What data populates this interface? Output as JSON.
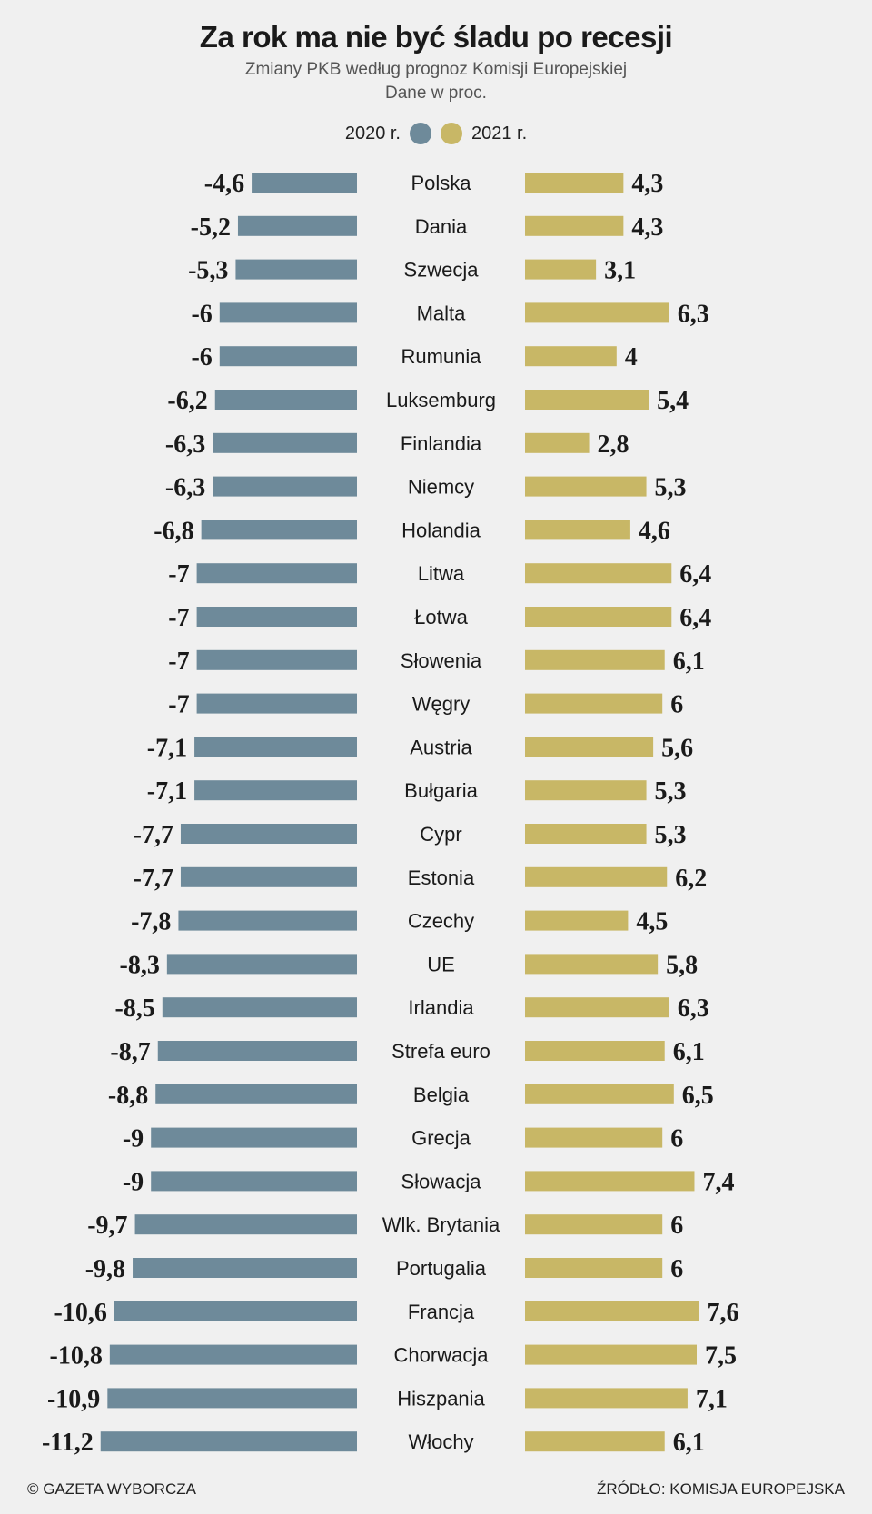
{
  "chart_data": {
    "type": "bar",
    "title": "Za rok ma nie być śladu po recesji",
    "subtitle": [
      "Zmiany PKB według prognoz Komisji Europejskiej",
      "Dane w proc."
    ],
    "categories": [
      "Polska",
      "Dania",
      "Szwecja",
      "Malta",
      "Rumunia",
      "Luksemburg",
      "Finlandia",
      "Niemcy",
      "Holandia",
      "Litwa",
      "Łotwa",
      "Słowenia",
      "Węgry",
      "Austria",
      "Bułgaria",
      "Cypr",
      "Estonia",
      "Czechy",
      "UE",
      "Irlandia",
      "Strefa euro",
      "Belgia",
      "Grecja",
      "Słowacja",
      "Wlk. Brytania",
      "Portugalia",
      "Francja",
      "Chorwacja",
      "Hiszpania",
      "Włochy"
    ],
    "series": [
      {
        "name": "2020 r.",
        "color": "#6e8a9a",
        "values": [
          -4.6,
          -5.2,
          -5.3,
          -6,
          -6,
          -6.2,
          -6.3,
          -6.3,
          -6.8,
          -7,
          -7,
          -7,
          -7,
          -7.1,
          -7.1,
          -7.7,
          -7.7,
          -7.8,
          -8.3,
          -8.5,
          -8.7,
          -8.8,
          -9,
          -9,
          -9.7,
          -9.8,
          -10.6,
          -10.8,
          -10.9,
          -11.2
        ],
        "labels": [
          "-4,6",
          "-5,2",
          "-5,3",
          "-6",
          "-6",
          "-6,2",
          "-6,3",
          "-6,3",
          "-6,8",
          "-7",
          "-7",
          "-7",
          "-7",
          "-7,1",
          "-7,1",
          "-7,7",
          "-7,7",
          "-7,8",
          "-8,3",
          "-8,5",
          "-8,7",
          "-8,8",
          "-9",
          "-9",
          "-9,7",
          "-9,8",
          "-10,6",
          "-10,8",
          "-10,9",
          "-11,2"
        ]
      },
      {
        "name": "2021 r.",
        "color": "#c8b766",
        "values": [
          4.3,
          4.3,
          3.1,
          6.3,
          4,
          5.4,
          2.8,
          5.3,
          4.6,
          6.4,
          6.4,
          6.1,
          6,
          5.6,
          5.3,
          5.3,
          6.2,
          4.5,
          5.8,
          6.3,
          6.1,
          6.5,
          6,
          7.4,
          6,
          6,
          7.6,
          7.5,
          7.1,
          6.1
        ],
        "labels": [
          "4,3",
          "4,3",
          "3,1",
          "6,3",
          "4",
          "5,4",
          "2,8",
          "5,3",
          "4,6",
          "6,4",
          "6,4",
          "6,1",
          "6",
          "5,6",
          "5,3",
          "5,3",
          "6,2",
          "4,5",
          "5,8",
          "6,3",
          "6,1",
          "6,5",
          "6",
          "7,4",
          "6",
          "6",
          "7,6",
          "7,5",
          "7,1",
          "6,1"
        ]
      }
    ],
    "legend_position": "top-center",
    "grid": false
  },
  "footer": {
    "credit": "© GAZETA WYBORCZA",
    "source": "ŹRÓDŁO: KOMISJA EUROPEJSKA"
  }
}
